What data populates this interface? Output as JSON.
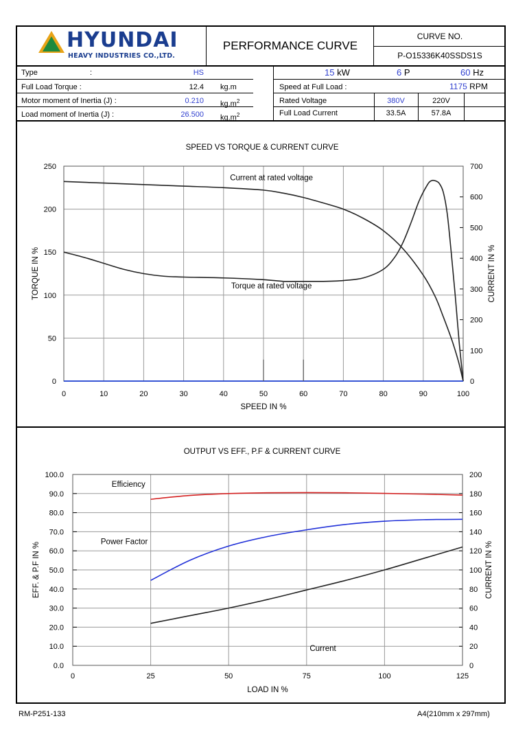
{
  "header": {
    "logo_text": "HYUNDAI",
    "logo_subtext": "HEAVY INDUSTRIES CO.,LTD.",
    "title": "PERFORMANCE CURVE",
    "curve_no_label": "CURVE NO.",
    "curve_no_value": "P-O15336K40SSDS1S"
  },
  "specs": {
    "type_label": "Type",
    "type_colon": ":",
    "type_value": "HS",
    "torque_label": "Full Load Torque :",
    "torque_value": "12.4",
    "torque_unit": "kg.m",
    "motor_inertia_label": "Motor moment of Inertia (J) :",
    "motor_inertia_value": "0.210",
    "inertia_unit": "kg.m",
    "inertia_unit_sup": "2",
    "load_inertia_label": "Load moment of Inertia (J) :",
    "load_inertia_value": "26.500",
    "power_value": "15",
    "power_unit": "kW",
    "poles_value": "6",
    "poles_unit": "P",
    "freq_value": "60",
    "freq_unit": "Hz",
    "speed_label": "Speed at Full Load :",
    "speed_value": "1175",
    "speed_unit": "RPM",
    "voltage_label": "Rated Voltage",
    "voltage_1": "380V",
    "voltage_2": "220V",
    "current_label": "Full Load Current",
    "current_1": "33.5A",
    "current_2": "57.8A"
  },
  "chart_data": [
    {
      "type": "line",
      "title": "SPEED VS TORQUE & CURRENT CURVE",
      "xlabel": "SPEED IN %",
      "ylabel": "TORQUE IN %",
      "y2label": "CURRENT IN %",
      "xlim": [
        0,
        100
      ],
      "ylim": [
        0,
        250
      ],
      "y2lim": [
        0,
        700
      ],
      "xticks": [
        0,
        10,
        20,
        30,
        40,
        50,
        60,
        70,
        80,
        90,
        100
      ],
      "yticks": [
        0,
        50,
        100,
        150,
        200,
        250
      ],
      "y2ticks": [
        0,
        100,
        200,
        300,
        400,
        500,
        600,
        700
      ],
      "grid": true,
      "annotations": [
        "Current at rated voltage",
        "Torque at rated voltage"
      ],
      "series": [
        {
          "name": "Current at rated voltage",
          "axis": "right",
          "color": "#222222",
          "x": [
            0,
            10,
            20,
            30,
            40,
            50,
            55,
            60,
            65,
            70,
            75,
            80,
            85,
            90,
            93,
            95,
            97,
            98,
            99,
            100
          ],
          "y": [
            650,
            645,
            640,
            635,
            630,
            622,
            612,
            598,
            580,
            560,
            530,
            490,
            430,
            345,
            275,
            210,
            140,
            100,
            55,
            0
          ]
        },
        {
          "name": "Torque at rated voltage",
          "axis": "left",
          "color": "#222222",
          "x": [
            0,
            5,
            10,
            15,
            20,
            25,
            30,
            40,
            50,
            55,
            60,
            65,
            70,
            75,
            80,
            83,
            85,
            87,
            89,
            91,
            92,
            93,
            94,
            95,
            96,
            97,
            98,
            99,
            100
          ],
          "y": [
            150,
            144,
            137,
            130,
            125,
            122,
            121,
            120,
            118,
            116,
            116,
            116,
            117,
            120,
            130,
            145,
            162,
            185,
            210,
            228,
            233,
            233,
            230,
            220,
            195,
            150,
            100,
            45,
            0
          ]
        }
      ],
      "markers": [
        {
          "x": 50,
          "y": 25
        },
        {
          "x": 60,
          "y": 25
        }
      ]
    },
    {
      "type": "line",
      "title": "OUTPUT VS EFF., P.F & CURRENT CURVE",
      "xlabel": "LOAD IN %",
      "ylabel": "EFF. & P.F IN %",
      "y2label": "CURRENT IN %",
      "xlim": [
        0,
        125
      ],
      "ylim": [
        0,
        100
      ],
      "y2lim": [
        0,
        200
      ],
      "xticks": [
        0,
        25,
        50,
        75,
        100,
        125
      ],
      "yticks": [
        "0.0",
        "10.0",
        "20.0",
        "30.0",
        "40.0",
        "50.0",
        "60.0",
        "70.0",
        "80.0",
        "90.0",
        "100.0"
      ],
      "y2ticks": [
        0,
        20,
        40,
        60,
        80,
        100,
        120,
        140,
        160,
        180,
        200
      ],
      "grid": true,
      "annotations": [
        "Efficiency",
        "Power Factor",
        "Current"
      ],
      "series": [
        {
          "name": "Efficiency",
          "axis": "left",
          "color": "#d42020",
          "x": [
            25,
            37.5,
            50,
            62.5,
            75,
            87.5,
            100,
            112.5,
            125
          ],
          "y": [
            87.0,
            89.0,
            90.0,
            90.4,
            90.5,
            90.4,
            90.1,
            89.7,
            89.2
          ]
        },
        {
          "name": "Power Factor",
          "axis": "left",
          "color": "#2030d8",
          "x": [
            25,
            37.5,
            50,
            62.5,
            75,
            87.5,
            100,
            112.5,
            125
          ],
          "y": [
            44.5,
            55.0,
            62.5,
            67.5,
            71.0,
            73.8,
            75.5,
            76.3,
            76.5
          ]
        },
        {
          "name": "Current",
          "axis": "right",
          "color": "#222222",
          "x": [
            25,
            37.5,
            50,
            62.5,
            75,
            87.5,
            100,
            112.5,
            125
          ],
          "y": [
            44,
            52,
            60,
            69,
            79,
            89,
            100,
            112,
            124
          ]
        }
      ]
    }
  ],
  "footer": {
    "left": "RM-P251-133",
    "right": "A4(210mm x 297mm)"
  }
}
